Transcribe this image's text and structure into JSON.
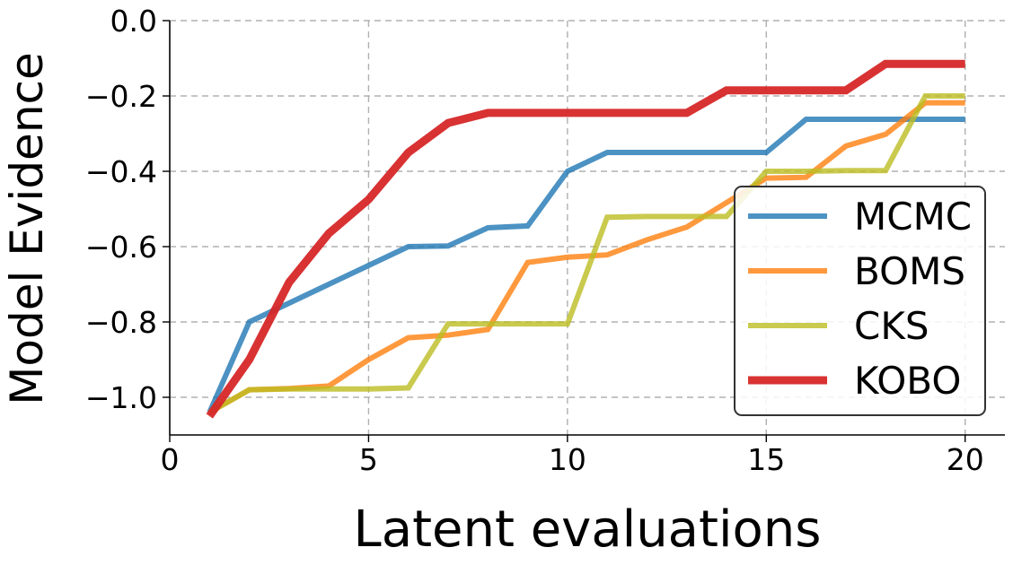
{
  "chart_data": {
    "type": "line",
    "title": "",
    "xlabel": "Latent evaluations",
    "ylabel": "Model Evidence",
    "xlim": [
      0,
      21
    ],
    "ylim": [
      -1.1,
      0.0
    ],
    "xticks": [
      0,
      5,
      10,
      15,
      20
    ],
    "xtick_labels": [
      "0",
      "5",
      "10",
      "15",
      "20"
    ],
    "yticks": [
      0.0,
      -0.2,
      -0.4,
      -0.6,
      -0.8,
      -1.0
    ],
    "ytick_labels": [
      "0.0",
      "−0.2",
      "−0.4",
      "−0.6",
      "−0.8",
      "−1.0"
    ],
    "grid": true,
    "legend_position": "lower-right",
    "x": [
      1,
      2,
      3,
      4,
      5,
      6,
      7,
      8,
      9,
      10,
      11,
      12,
      13,
      14,
      15,
      16,
      17,
      18,
      19,
      20
    ],
    "series": [
      {
        "name": "MCMC",
        "color": "#1f77b4",
        "values": [
          -1.04,
          -0.8,
          -0.75,
          -0.7,
          -0.65,
          -0.6,
          -0.598,
          -0.55,
          -0.545,
          -0.4,
          -0.35,
          -0.35,
          -0.35,
          -0.35,
          -0.35,
          -0.262,
          -0.262,
          -0.262,
          -0.262,
          -0.262
        ]
      },
      {
        "name": "BOMS",
        "color": "#ff7f0e",
        "values": [
          -1.04,
          -0.98,
          -0.977,
          -0.97,
          -0.9,
          -0.842,
          -0.835,
          -0.82,
          -0.642,
          -0.628,
          -0.622,
          -0.582,
          -0.548,
          -0.483,
          -0.418,
          -0.416,
          -0.333,
          -0.302,
          -0.218,
          -0.218
        ]
      },
      {
        "name": "CKS",
        "color": "#bcbd22",
        "values": [
          -1.04,
          -0.98,
          -0.978,
          -0.978,
          -0.978,
          -0.975,
          -0.805,
          -0.805,
          -0.805,
          -0.805,
          -0.522,
          -0.52,
          -0.52,
          -0.52,
          -0.4,
          -0.4,
          -0.398,
          -0.398,
          -0.2,
          -0.2
        ]
      },
      {
        "name": "KOBO",
        "color": "#d62728",
        "values": [
          -1.05,
          -0.9,
          -0.695,
          -0.565,
          -0.475,
          -0.35,
          -0.272,
          -0.245,
          -0.245,
          -0.245,
          -0.245,
          -0.245,
          -0.245,
          -0.185,
          -0.185,
          -0.185,
          -0.185,
          -0.115,
          -0.115,
          -0.115
        ]
      }
    ]
  }
}
